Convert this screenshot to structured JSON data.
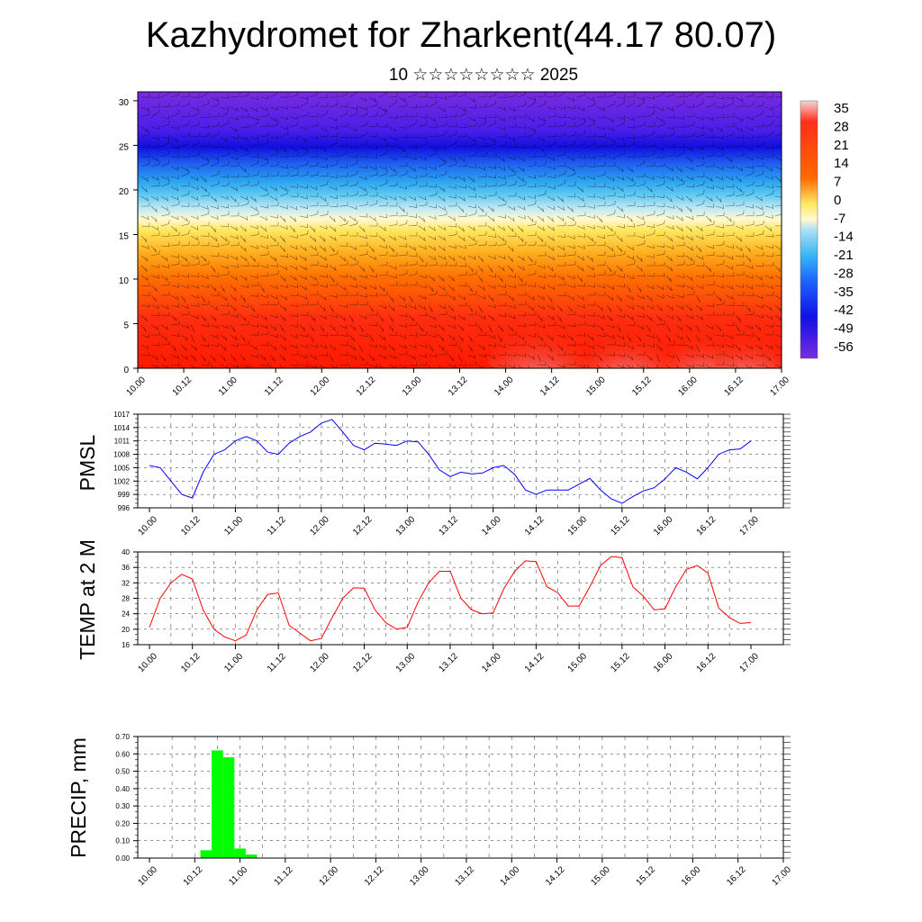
{
  "header": {
    "title": "Kazhydromet for Zharkent(44.17 80.07)",
    "subtitle": "10 ☆☆☆☆☆☆☆☆ 2025"
  },
  "chart_data": [
    {
      "type": "heatmap",
      "title": "",
      "xlabel": "",
      "ylabel": "",
      "x_ticks": [
        "10.00",
        "10.12",
        "11.00",
        "11.12",
        "12.00",
        "12.12",
        "13.00",
        "13.12",
        "14.00",
        "14.12",
        "15.00",
        "15.12",
        "16.00",
        "16.12",
        "17.00"
      ],
      "y_ticks": [
        "0",
        "5",
        "10",
        "15",
        "20",
        "25",
        "30"
      ],
      "ylim": [
        0,
        31
      ],
      "colorbar_labels": [
        "35",
        "28",
        "21",
        "14",
        "7",
        "0",
        "-7",
        "-14",
        "-21",
        "-28",
        "-35",
        "-42",
        "-49",
        "-56"
      ],
      "colorbar_colors": [
        "#f4d6d6",
        "#ff2d1a",
        "#ff6a00",
        "#ffe866",
        "#fffacd",
        "#aee0f5",
        "#38b6f2",
        "#1e64ff",
        "#1010e8",
        "#7a2be0"
      ],
      "overlay": "wind barbs"
    },
    {
      "type": "line",
      "ylabel": "PMSL",
      "ylim": [
        996,
        1017
      ],
      "y_ticks": [
        "996",
        "999",
        "1002",
        "1005",
        "1008",
        "1011",
        "1014",
        "1017"
      ],
      "x_ticks": [
        "10.00",
        "10.12",
        "11.00",
        "11.12",
        "12.00",
        "12.12",
        "13.00",
        "13.12",
        "14.00",
        "14.12",
        "15.00",
        "15.12",
        "16.00",
        "16.12",
        "17.00"
      ],
      "series": [
        {
          "color": "#0000ff",
          "values": [
            1005.5,
            1005.0,
            1002.0,
            999.0,
            998.2,
            1004.0,
            1008.0,
            1009.0,
            1011.0,
            1012.0,
            1011.0,
            1008.5,
            1008.0,
            1010.5,
            1012.0,
            1013.0,
            1015.0,
            1015.8,
            1013.0,
            1010.0,
            1009.0,
            1010.5,
            1010.3,
            1010.0,
            1011.0,
            1010.8,
            1008.0,
            1004.5,
            1003.0,
            1004.0,
            1003.6,
            1003.8,
            1005.0,
            1005.5,
            1003.5,
            1000.0,
            999.0,
            1000.0,
            1000.0,
            1000.0,
            1001.3,
            1002.6,
            1000.0,
            998.0,
            997.0,
            998.5,
            999.8,
            1000.5,
            1002.5,
            1005.0,
            1004.0,
            1002.5,
            1005.0,
            1008.0,
            1009.0,
            1009.2,
            1011.0
          ]
        }
      ]
    },
    {
      "type": "line",
      "ylabel": "TEMP at 2 M",
      "ylim": [
        16,
        40
      ],
      "y_ticks": [
        "16",
        "20",
        "24",
        "28",
        "32",
        "36",
        "40"
      ],
      "x_ticks": [
        "10.00",
        "10.12",
        "11.00",
        "11.12",
        "12.00",
        "12.12",
        "13.00",
        "13.12",
        "14.00",
        "14.12",
        "15.00",
        "15.12",
        "16.00",
        "16.12",
        "17.00"
      ],
      "series": [
        {
          "color": "#ff0000",
          "values": [
            20.5,
            28.0,
            32.0,
            34.2,
            33.0,
            25.0,
            20.0,
            18.0,
            17.0,
            18.5,
            25.0,
            29.0,
            29.4,
            21.0,
            19.0,
            17.0,
            17.6,
            23.0,
            28.0,
            30.7,
            30.6,
            25.0,
            21.7,
            20.0,
            20.5,
            27.0,
            32.0,
            35.0,
            35.0,
            28.0,
            25.0,
            24.0,
            24.2,
            30.5,
            35.0,
            37.7,
            37.5,
            31.0,
            29.5,
            26.0,
            26.0,
            31.0,
            36.5,
            38.8,
            38.5,
            31.0,
            28.5,
            25.0,
            25.3,
            31.0,
            35.5,
            36.5,
            34.5,
            25.5,
            23.0,
            21.5,
            21.7
          ]
        }
      ]
    },
    {
      "type": "bar",
      "ylabel": "PRECIP, mm",
      "ylim": [
        0,
        0.7
      ],
      "y_ticks": [
        "0.00",
        "0.10",
        "0.20",
        "0.30",
        "0.40",
        "0.50",
        "0.60",
        "0.70"
      ],
      "x_ticks": [
        "10.00",
        "10.12",
        "11.00",
        "11.12",
        "12.00",
        "12.12",
        "13.00",
        "13.12",
        "14.00",
        "14.12",
        "15.00",
        "15.12",
        "16.00",
        "16.12",
        "17.00"
      ],
      "series": [
        {
          "color": "#00ff00",
          "values": [
            0,
            0,
            0,
            0,
            0,
            0.045,
            0.62,
            0.58,
            0.055,
            0.02,
            0,
            0,
            0,
            0,
            0,
            0,
            0,
            0,
            0,
            0,
            0,
            0,
            0,
            0,
            0,
            0,
            0,
            0,
            0,
            0,
            0,
            0,
            0,
            0,
            0,
            0,
            0,
            0,
            0,
            0,
            0,
            0,
            0,
            0,
            0,
            0,
            0,
            0,
            0,
            0,
            0,
            0,
            0,
            0,
            0,
            0,
            0
          ]
        }
      ]
    }
  ]
}
